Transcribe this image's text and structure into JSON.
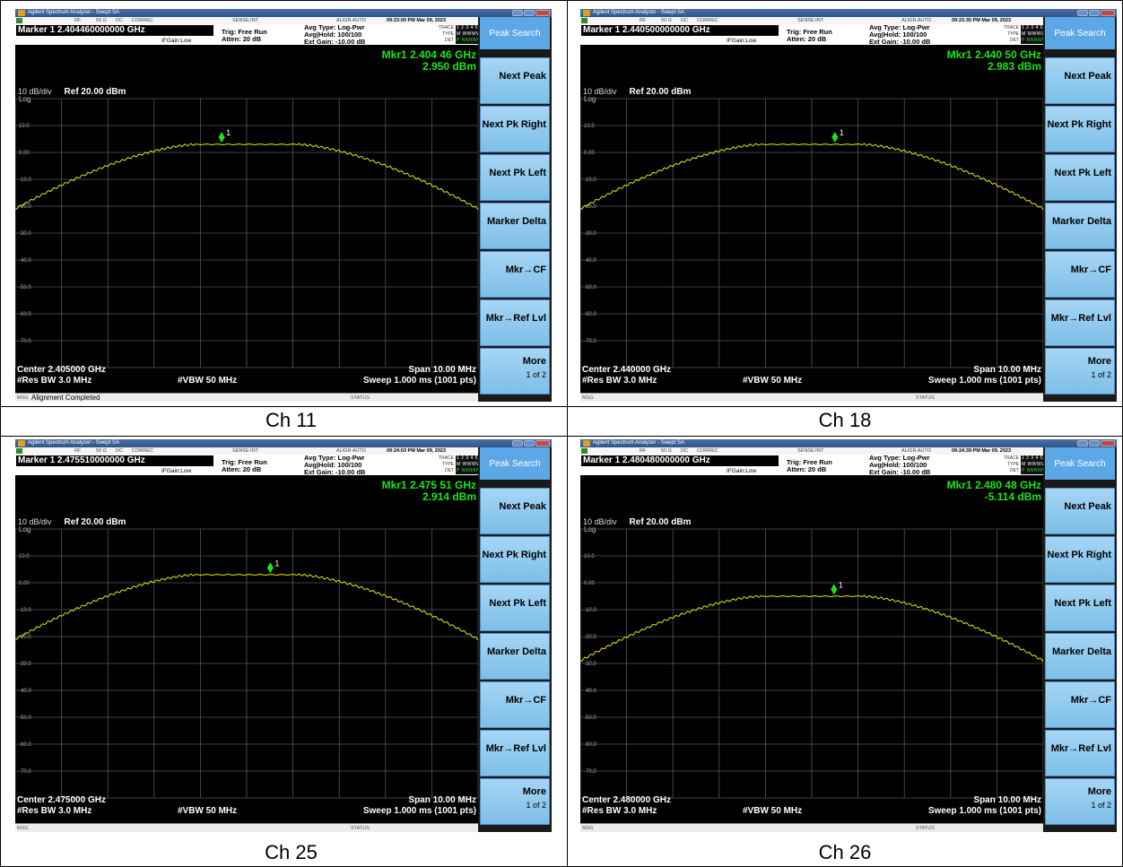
{
  "app_title": "Agilent Spectrum Analyzer - Swept SA",
  "top_status": {
    "rf": "RF",
    "impedance": "50 Ω",
    "coupling": "DC",
    "correc": "CORREC",
    "sense": "SENSE:INT",
    "align": "ALIGN AUTO"
  },
  "settings": {
    "pno": "PNO: Fast ↔",
    "ifgain": "IFGain:Low",
    "trig": "Trig: Free Run",
    "atten": "Atten: 20 dB",
    "avg_type": "Avg Type: Log-Pwr",
    "avg_hold": "Avg|Hold: 100/100",
    "ext_gain": "Ext Gain: -10.00 dB",
    "trace_label": "TRACE",
    "type_label": "TYPE",
    "det_label": "DET",
    "trace_val": "1 2 3 4 5 6",
    "type_val": "M WWWWW",
    "det_val": "P NNNNN"
  },
  "scale": {
    "per_div": "10 dB/div",
    "ref": "Ref 20.00 dBm",
    "log": "Log"
  },
  "y_ticks": [
    "10.0",
    "0.00",
    "-10.0",
    "-20.0",
    "-30.0",
    "-40.0",
    "-50.0",
    "-60.0",
    "-70.0"
  ],
  "bottom": {
    "res_bw": "#Res BW 3.0 MHz",
    "vbw": "#VBW 50 MHz",
    "sweep": "Sweep  1.000 ms (1001 pts)",
    "span": "Span 10.00 MHz"
  },
  "msgbar": {
    "msg": "MSG",
    "status": "STATUS"
  },
  "softkeys": {
    "header": "Peak Search",
    "keys": [
      "Next Peak",
      "Next Pk Right",
      "Next Pk Left",
      "Marker Delta",
      "Mkr→CF",
      "Mkr→Ref Lvl",
      "More"
    ],
    "more_sub": "1 of 2"
  },
  "panels": [
    {
      "caption": "Ch 11",
      "timestamp": "09:23:00 PM Mar 09, 2023",
      "marker_line": "Marker 1  2.404460000000 GHz",
      "mkr_freq": "Mkr1 2.404 46 GHz",
      "mkr_amp": "2.950 dBm",
      "center": "Center 2.405000 GHz",
      "msg_text": "Alignment Completed"
    },
    {
      "caption": "Ch 18",
      "timestamp": "09:23:35 PM Mar 09, 2023",
      "marker_line": "Marker 1  2.440500000000 GHz",
      "mkr_freq": "Mkr1 2.440 50 GHz",
      "mkr_amp": "2.983 dBm",
      "center": "Center 2.440000 GHz",
      "msg_text": ""
    },
    {
      "caption": "Ch 25",
      "timestamp": "09:24:03 PM Mar 09, 2023",
      "marker_line": "Marker 1  2.475510000000 GHz",
      "mkr_freq": "Mkr1 2.475 51 GHz",
      "mkr_amp": "2.914 dBm",
      "center": "Center 2.475000 GHz",
      "msg_text": ""
    },
    {
      "caption": "Ch 26",
      "timestamp": "09:24:39 PM Mar 09, 2023",
      "marker_line": "Marker 1  2.480480000000 GHz",
      "mkr_freq": "Mkr1 2.480 48 GHz",
      "mkr_amp": "-5.114 dBm",
      "center": "Center 2.480000 GHz",
      "msg_text": ""
    }
  ],
  "traces": [
    {
      "peak_dbm": 3.0,
      "marker_offset_mhz": -0.54,
      "marker_dbm": 2.95,
      "edge_dbm": -21.0
    },
    {
      "peak_dbm": 3.0,
      "marker_offset_mhz": 0.5,
      "marker_dbm": 2.98,
      "edge_dbm": -21.0
    },
    {
      "peak_dbm": 3.0,
      "marker_offset_mhz": 0.51,
      "marker_dbm": 2.91,
      "edge_dbm": -21.0
    },
    {
      "peak_dbm": -5.0,
      "marker_offset_mhz": 0.48,
      "marker_dbm": -5.11,
      "edge_dbm": -29.0
    }
  ],
  "colors": {
    "trace": "#e6e600",
    "marker": "#19e619",
    "grid": "#555555",
    "softkey": "#8fcbf0"
  }
}
